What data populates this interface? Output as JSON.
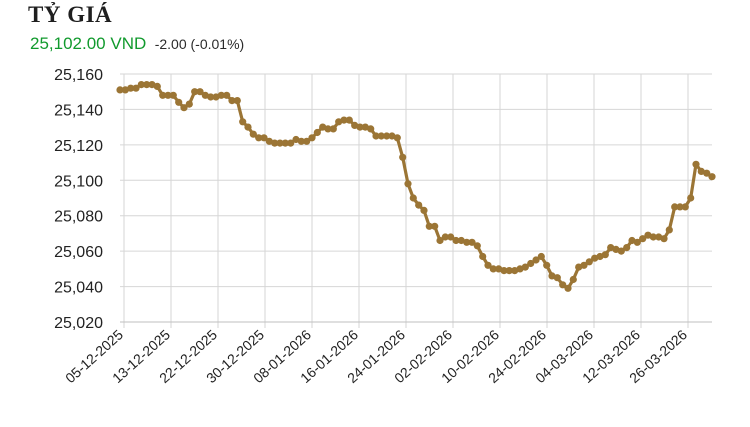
{
  "header": {
    "title": "TỶ GIÁ",
    "price": "25,102.00 VND",
    "change": "-2.00 (-0.01%)"
  },
  "colors": {
    "line": "#9b7535",
    "price": "#119a2d",
    "grid": "#d6d6d6"
  },
  "chart_data": {
    "type": "line",
    "title": "",
    "xlabel": "",
    "ylabel": "",
    "ylim": [
      25020,
      25160
    ],
    "yticks": [
      25020,
      25040,
      25060,
      25080,
      25100,
      25120,
      25140,
      25160
    ],
    "ytick_labels": [
      "25,020",
      "25,040",
      "25,060",
      "25,080",
      "25,100",
      "25,120",
      "25,140",
      "25,160"
    ],
    "xticks": [
      "05-12-2025",
      "13-12-2025",
      "22-12-2025",
      "30-12-2025",
      "08-01-2026",
      "16-01-2026",
      "24-01-2026",
      "02-02-2026",
      "10-02-2026",
      "24-02-2026",
      "04-03-2026",
      "12-03-2026",
      "26-03-2026"
    ],
    "grid": {
      "x": true,
      "y": true
    },
    "series": [
      {
        "values": [
          25151,
          25151,
          25152,
          25152,
          25154,
          25154,
          25154,
          25153,
          25148,
          25148,
          25148,
          25144,
          25141,
          25143,
          25150,
          25150,
          25148,
          25147,
          25147,
          25148,
          25148,
          25145,
          25145,
          25133,
          25130,
          25126,
          25124,
          25124,
          25122,
          25121,
          25121,
          25121,
          25121,
          25123,
          25122,
          25122,
          25124,
          25127,
          25130,
          25129,
          25129,
          25133,
          25134,
          25134,
          25131,
          25130,
          25130,
          25129,
          25125,
          25125,
          25125,
          25125,
          25124,
          25113,
          25098,
          25090,
          25086,
          25083,
          25074,
          25074,
          25066,
          25068,
          25068,
          25066,
          25066,
          25065,
          25065,
          25063,
          25057,
          25052,
          25050,
          25050,
          25049,
          25049,
          25049,
          25050,
          25051,
          25053,
          25055,
          25057,
          25052,
          25046,
          25045,
          25041,
          25039,
          25044,
          25051,
          25052,
          25054,
          25056,
          25057,
          25058,
          25062,
          25061,
          25060,
          25062,
          25066,
          25065,
          25067,
          25069,
          25068,
          25068,
          25067,
          25072,
          25085,
          25085,
          25085,
          25090,
          25109,
          25105,
          25104,
          25102
        ]
      }
    ]
  }
}
